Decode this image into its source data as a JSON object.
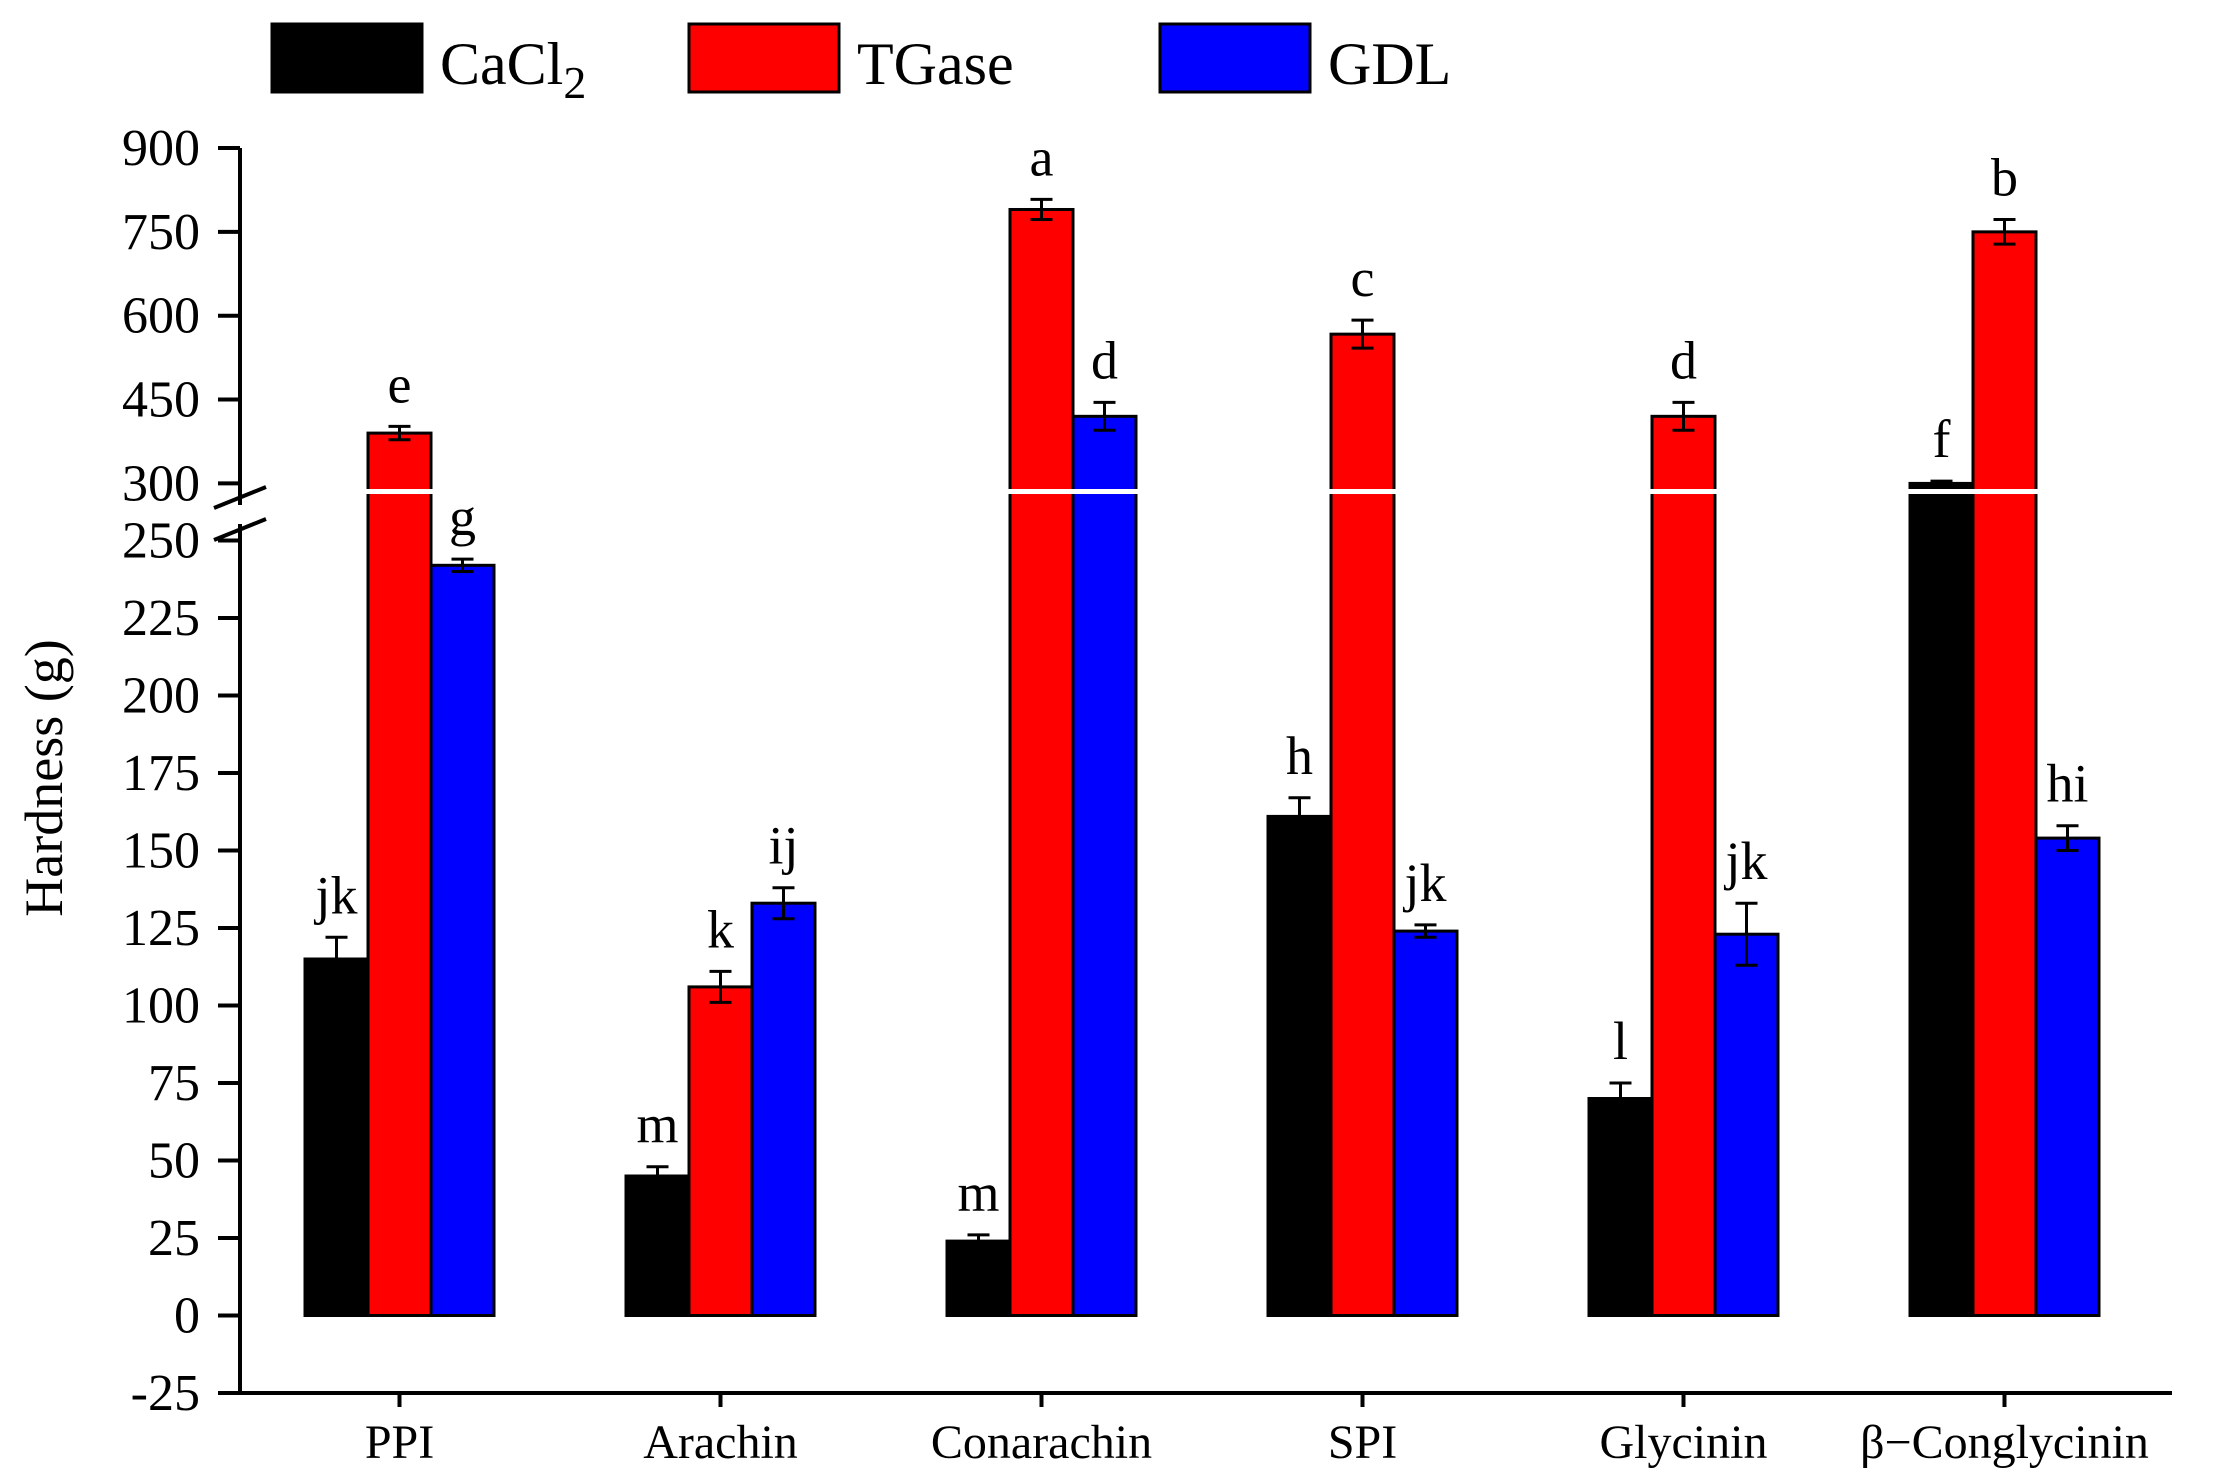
{
  "chart_data": {
    "type": "bar",
    "title": "",
    "xlabel": "",
    "ylabel": "Hardness (g)",
    "categories": [
      "PPI",
      "Arachin",
      "Conarachin",
      "SPI",
      "Glycinin",
      "β−Conglycinin"
    ],
    "axis_break": {
      "lower_max": 265,
      "upper_min": 290
    },
    "ylim_lower": [
      -25,
      265
    ],
    "ylim_upper": [
      290,
      900
    ],
    "yticks_lower": [
      "-25",
      "0",
      "25",
      "50",
      "75",
      "100",
      "125",
      "150",
      "175",
      "200",
      "225",
      "250"
    ],
    "yticks_upper": [
      "300",
      "450",
      "600",
      "750",
      "900"
    ],
    "legend": [
      {
        "key": "cacl2",
        "name": "CaCl",
        "subscript": "2",
        "color": "#000000"
      },
      {
        "key": "tgase",
        "name": "TGase",
        "subscript": "",
        "color": "#ff0000"
      },
      {
        "key": "gdl",
        "name": "GDL",
        "subscript": "",
        "color": "#0000ff"
      }
    ],
    "series": [
      {
        "name": "CaCl2",
        "color": "#000000",
        "values": [
          115,
          45,
          24,
          161,
          70,
          300
        ],
        "errors": [
          7,
          3,
          2,
          6,
          5,
          4
        ],
        "letters": [
          "jk",
          "m",
          "m",
          "h",
          "l",
          "f"
        ]
      },
      {
        "name": "TGase",
        "color": "#ff0000",
        "values": [
          390,
          106,
          790,
          567,
          420,
          750
        ],
        "errors": [
          12,
          5,
          18,
          25,
          25,
          22
        ],
        "letters": [
          "e",
          "k",
          "a",
          "c",
          "d",
          "b"
        ]
      },
      {
        "name": "GDL",
        "color": "#0000ff",
        "values": [
          242,
          133,
          420,
          124,
          123,
          154
        ],
        "errors": [
          2,
          5,
          25,
          2,
          10,
          4
        ],
        "letters": [
          "g",
          "ij",
          "d",
          "jk",
          "jk",
          "hi"
        ]
      }
    ]
  }
}
